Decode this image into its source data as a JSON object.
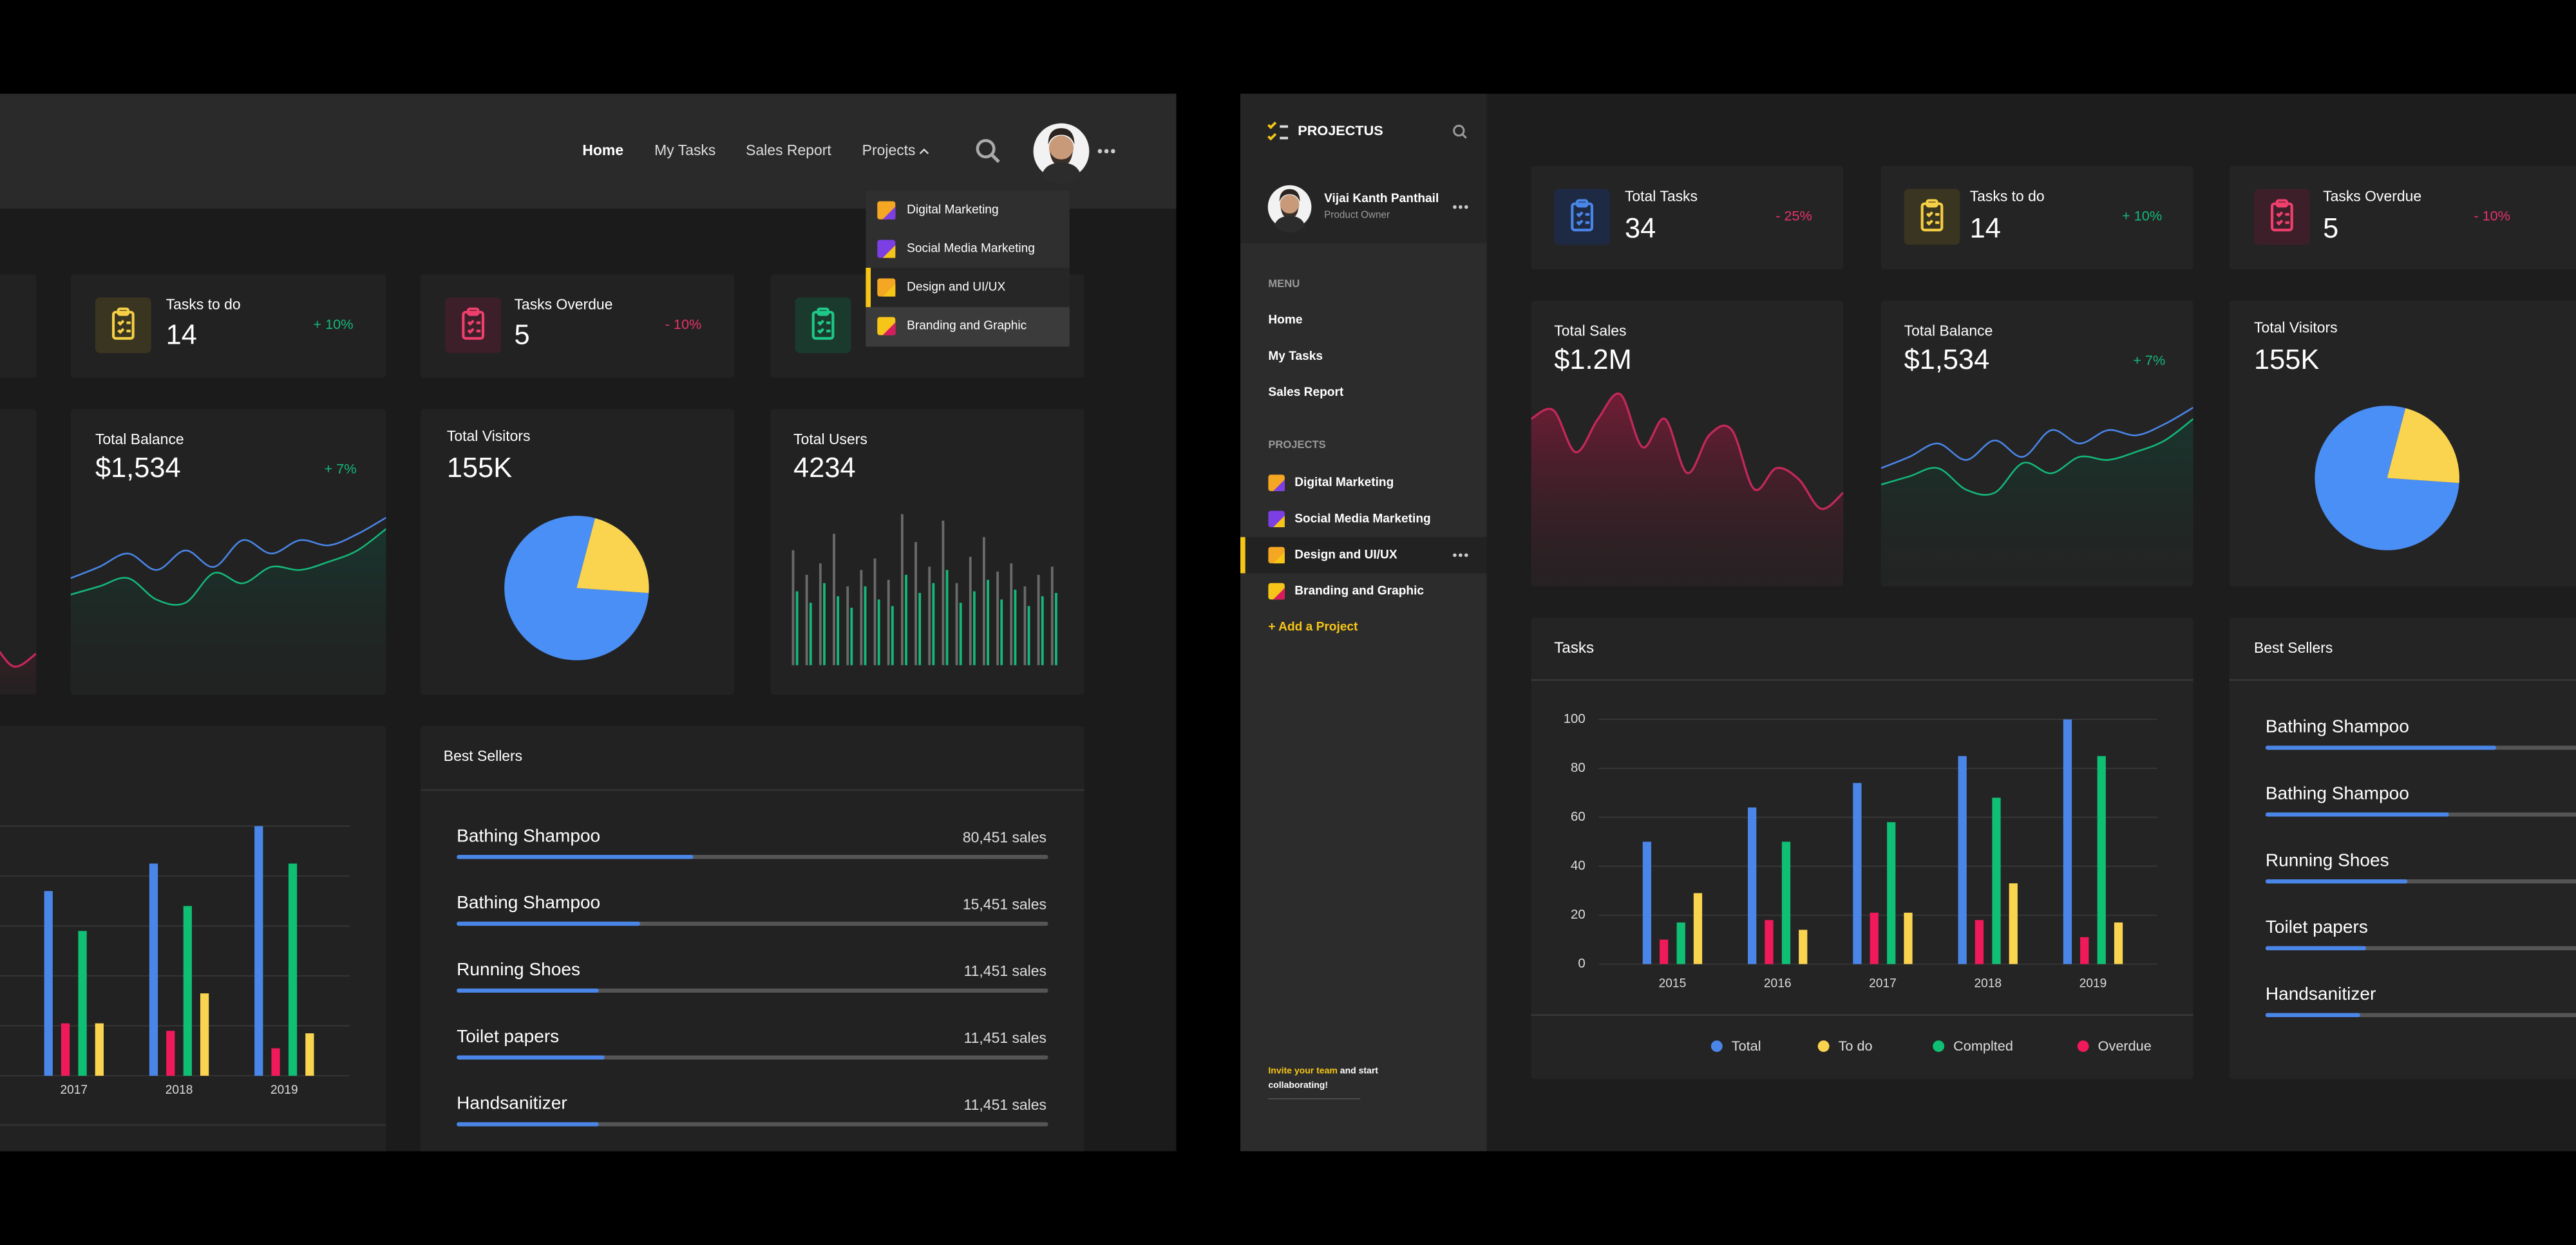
{
  "brand": "PROJECTUS",
  "user": {
    "name": "Vijai Kanth Panthail",
    "role": "Product Owner"
  },
  "top_nav": [
    "Home",
    "My Tasks",
    "Sales Report",
    "Projects"
  ],
  "sidebar": {
    "menu_title": "MENU",
    "menu": [
      "Home",
      "My Tasks",
      "Sales Report"
    ],
    "projects_title": "PROJECTS",
    "add_project": "+ Add a Project",
    "invite_highlight": "Invite your team",
    "invite_text": [
      "and start",
      "collaborating!"
    ]
  },
  "projects": [
    "Digital Marketing",
    "Social Media Marketing",
    "Design and UI/UX",
    "Branding and Graphic"
  ],
  "stats": [
    {
      "title": "Total Tasks",
      "value": "34",
      "change": "- 25%"
    },
    {
      "title": "Tasks to do",
      "value": "14",
      "change": "+ 10%"
    },
    {
      "title": "Tasks Overdue",
      "value": "5",
      "change": "- 10%"
    }
  ],
  "sales": {
    "title": "Total Sales",
    "value": "$1.2M",
    "color": "#c2285a",
    "trend": [
      80,
      87,
      53,
      80,
      100,
      57,
      80,
      36,
      67,
      71,
      23,
      40,
      31,
      7,
      20
    ]
  },
  "balance": {
    "title": "Total Balance",
    "value": "$1,534",
    "change": "+ 7%",
    "series": [
      {
        "color": "#4a86e8",
        "values": [
          40,
          51,
          64,
          48,
          67,
          51,
          77,
          64,
          77,
          72,
          83,
          99
        ]
      },
      {
        "color": "#14b87a",
        "values": [
          24,
          32,
          40,
          19,
          16,
          45,
          35,
          51,
          48,
          56,
          67,
          88
        ]
      }
    ]
  },
  "visitors": {
    "title": "Total Visitors",
    "value": "155K",
    "pie": [
      {
        "color": "#4a8ff5",
        "value": 78
      },
      {
        "color": "#fbd44f",
        "value": 22
      }
    ]
  },
  "users": {
    "title": "Total Users",
    "value": "4234",
    "bars": [
      {
        "color": "#6a6a6a",
        "values": [
          70,
          55,
          62,
          80,
          48,
          58,
          65,
          52,
          92,
          75,
          60,
          88,
          50,
          66,
          78,
          57,
          62,
          48,
          55,
          60
        ]
      },
      {
        "color": "#14b87a",
        "values": [
          45,
          38,
          50,
          42,
          35,
          48,
          40,
          36,
          55,
          44,
          50,
          58,
          38,
          45,
          52,
          40,
          46,
          36,
          42,
          44
        ]
      }
    ]
  },
  "best_sellers": {
    "title": "Best Sellers",
    "items": [
      {
        "name": "Bathing Shampoo",
        "sales": "80,451 sales"
      },
      {
        "name": "Bathing Shampoo",
        "sales": "15,451 sales"
      },
      {
        "name": "Running Shoes",
        "sales": "11,451 sales"
      },
      {
        "name": "Toilet papers",
        "sales": "11,451 sales"
      },
      {
        "name": "Handsanitizer",
        "sales": "11,451 sales"
      }
    ],
    "progress_left": [
      40,
      31,
      24,
      25,
      24
    ],
    "progress_right": [
      39,
      31,
      24,
      17,
      16
    ]
  },
  "chart_data": {
    "type": "bar",
    "title": "Tasks",
    "categories": [
      "2015",
      "2016",
      "2017",
      "2018",
      "2019"
    ],
    "series": [
      {
        "name": "Total",
        "color": "#4a86e8",
        "values": [
          50,
          64,
          74,
          85,
          100
        ]
      },
      {
        "name": "To do",
        "color": "#fbd44f",
        "values": [
          29,
          14,
          21,
          33,
          17
        ]
      },
      {
        "name": "Complted",
        "color": "#0fbf74",
        "values": [
          17,
          50,
          58,
          68,
          85
        ]
      },
      {
        "name": "Overdue",
        "color": "#f0195a",
        "values": [
          10,
          18,
          21,
          18,
          11
        ]
      }
    ],
    "ylim": [
      0,
      100
    ],
    "yticks": [
      0,
      20,
      40,
      60,
      80,
      100
    ],
    "grid": true
  }
}
